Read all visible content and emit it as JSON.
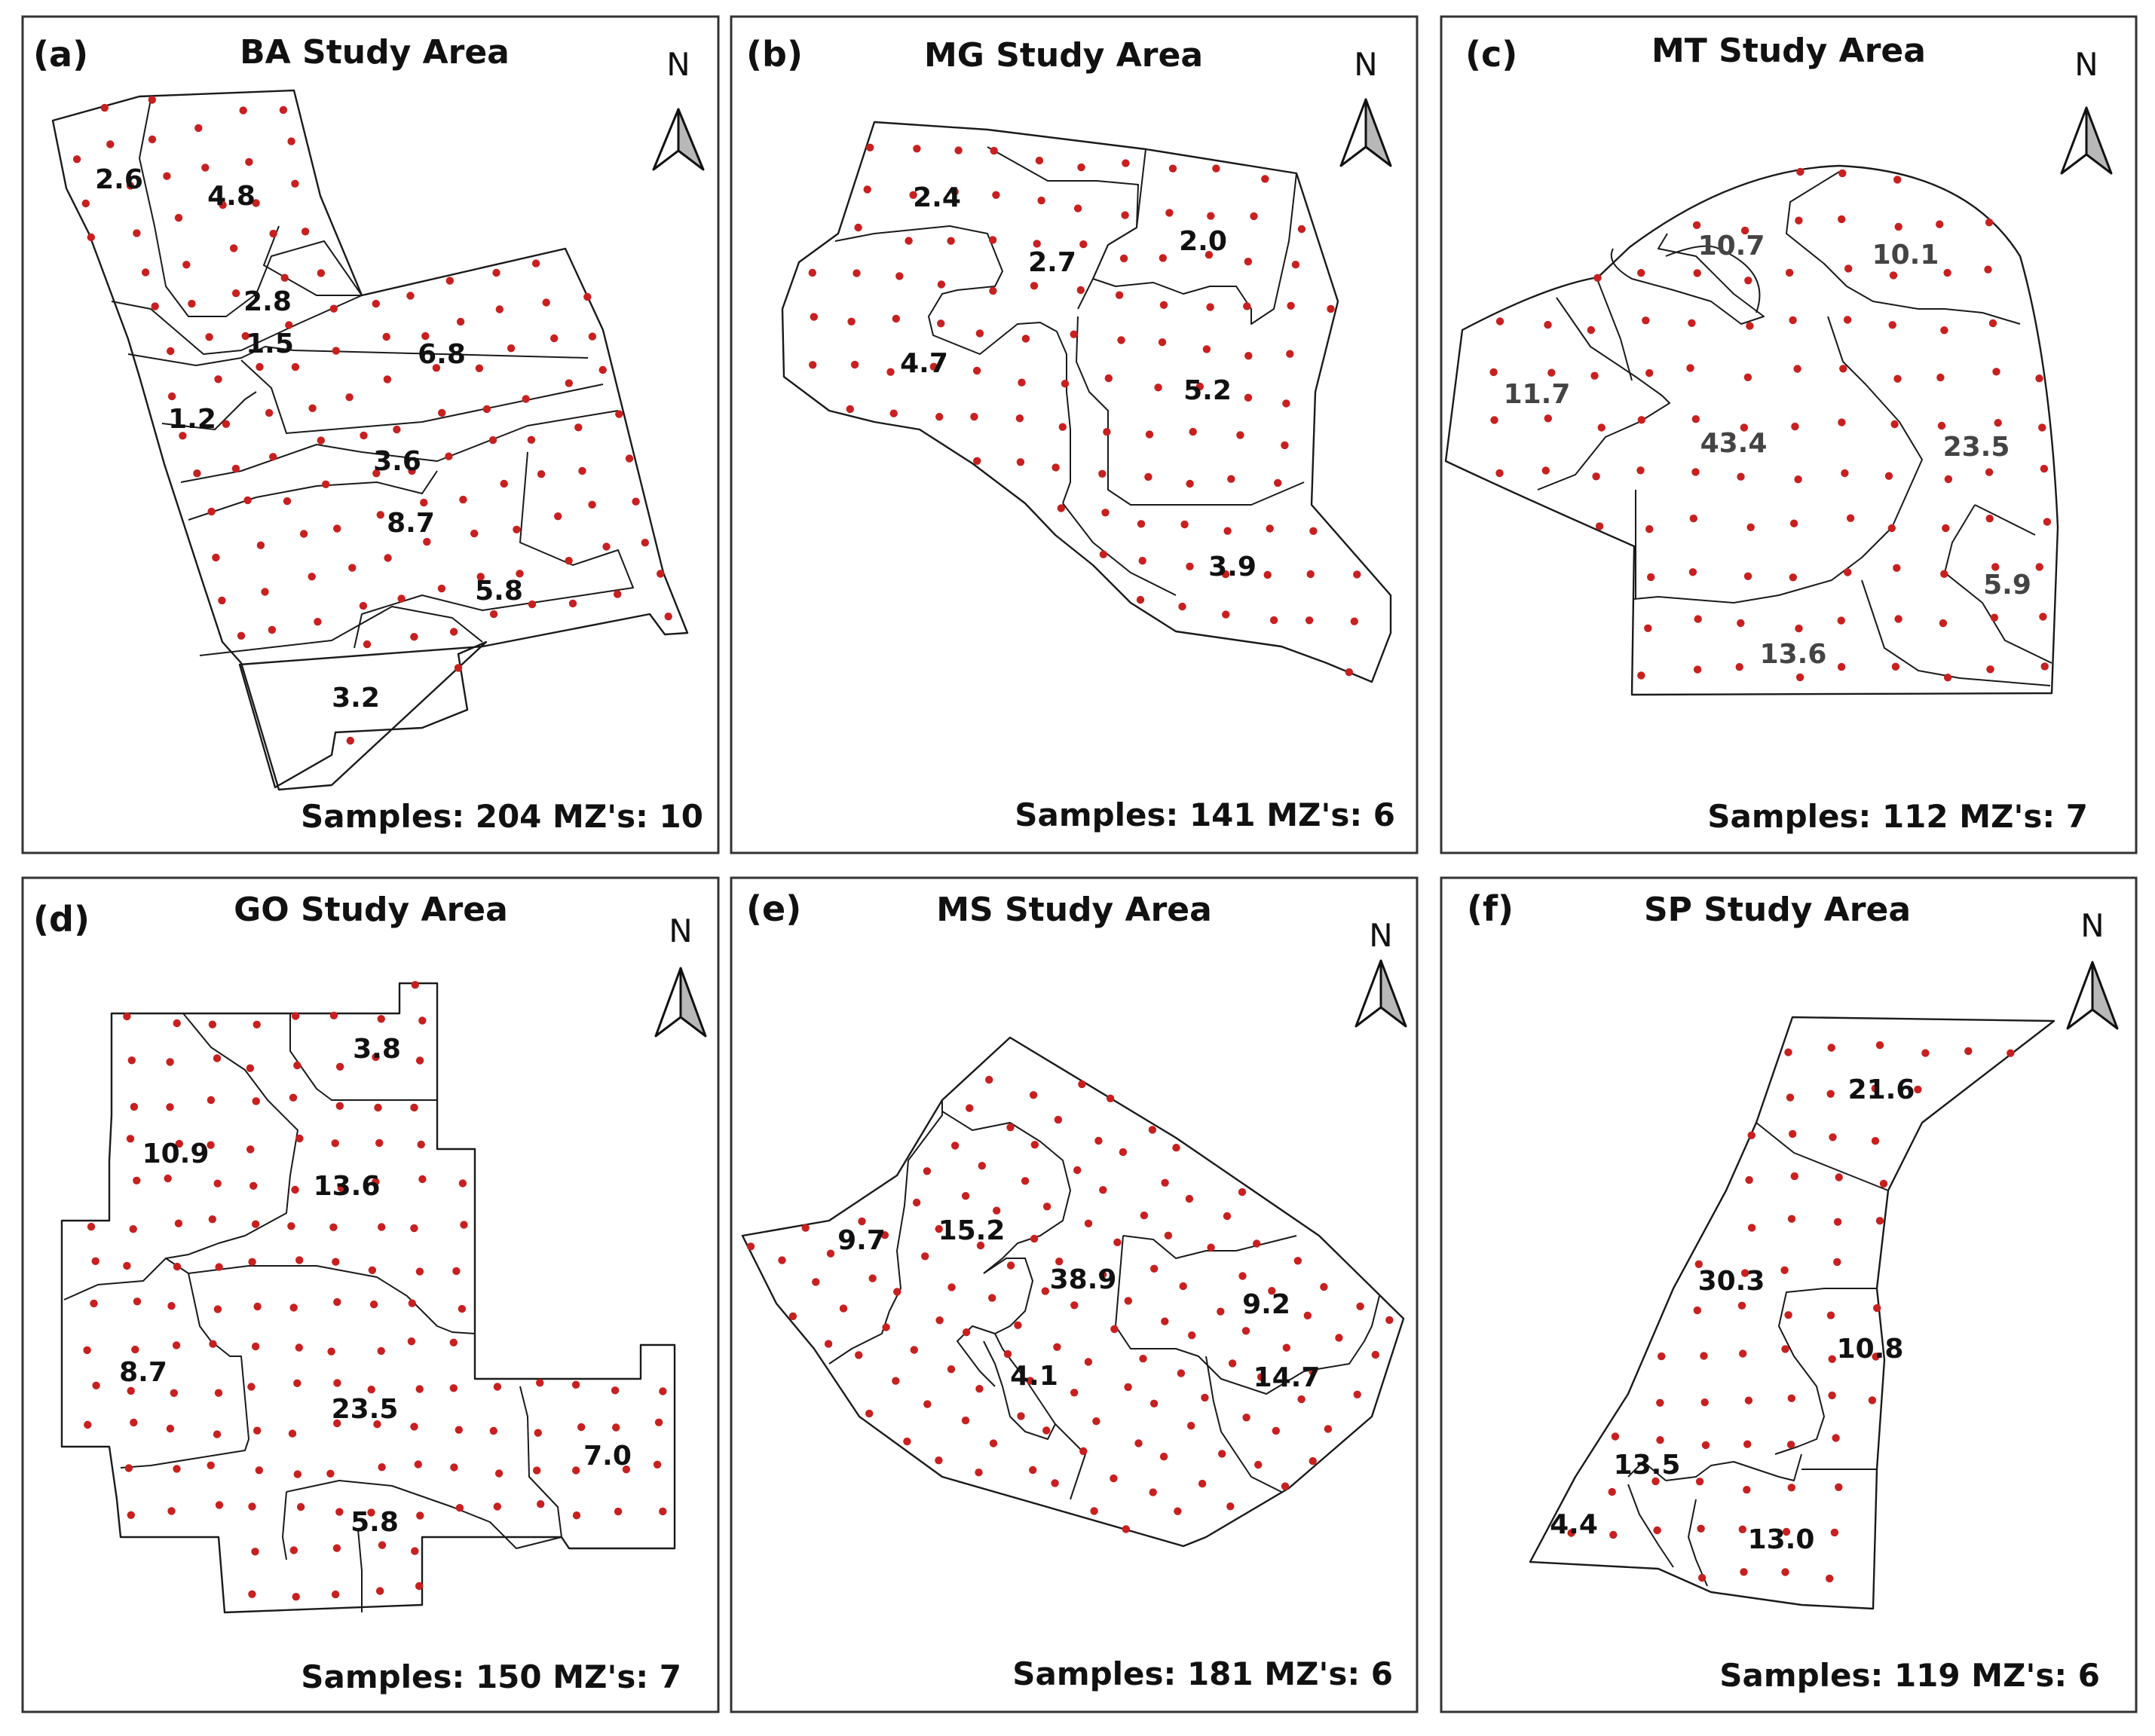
{
  "panels": [
    {
      "letter": "(a)",
      "title": "BA Study Area",
      "north": "N",
      "samples": 204,
      "zones": 10,
      "footer": "Samples: 204 MZ's: 10",
      "zone_labels": [
        "2.6",
        "4.8",
        "2.8",
        "1.5",
        "6.8",
        "1.2",
        "3.6",
        "8.7",
        "5.8",
        "3.2"
      ]
    },
    {
      "letter": "(b)",
      "title": "MG Study Area",
      "north": "N",
      "samples": 141,
      "zones": 6,
      "footer": "Samples: 141 MZ's: 6",
      "zone_labels": [
        "2.4",
        "2.7",
        "2.0",
        "4.7",
        "5.2",
        "3.9"
      ]
    },
    {
      "letter": "(c)",
      "title": "MT Study Area",
      "north": "N",
      "samples": 112,
      "zones": 7,
      "footer": "Samples: 112 MZ's: 7",
      "zone_labels": [
        "10.7",
        "10.1",
        "11.7",
        "43.4",
        "23.5",
        "5.9",
        "13.6"
      ]
    },
    {
      "letter": "(d)",
      "title": "GO Study Area",
      "north": "N",
      "samples": 150,
      "zones": 7,
      "footer": "Samples: 150 MZ's: 7",
      "zone_labels": [
        "3.8",
        "10.9",
        "13.6",
        "8.7",
        "23.5",
        "7.0",
        "5.8"
      ]
    },
    {
      "letter": "(e)",
      "title": "MS Study Area",
      "north": "N",
      "samples": 181,
      "zones": 6,
      "footer": "Samples: 181 MZ's: 6",
      "zone_labels": [
        "9.7",
        "15.2",
        "38.9",
        "9.2",
        "4.1",
        "14.7"
      ]
    },
    {
      "letter": "(f)",
      "title": "SP Study Area",
      "north": "N",
      "samples": 119,
      "zones": 6,
      "footer": "Samples: 119 MZ's: 6",
      "zone_labels": [
        "21.6",
        "30.3",
        "10.8",
        "13.5",
        "4.4",
        "13.0"
      ]
    }
  ],
  "colors": {
    "sample_point": "#c8201f",
    "frame": "#333333",
    "boundary": "#1a1a1a",
    "north_arrow_shade": "#b8b8b8"
  }
}
